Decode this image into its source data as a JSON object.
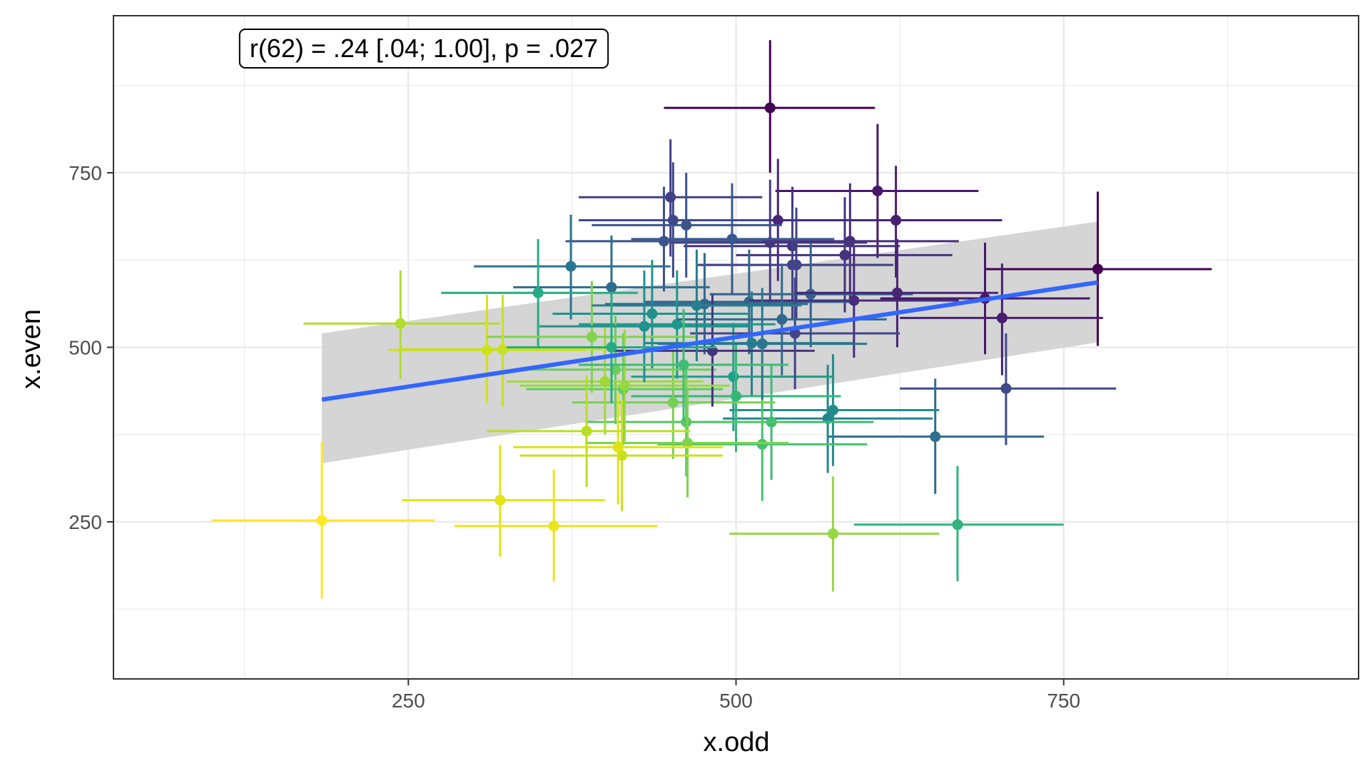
{
  "chart_data": {
    "type": "scatter",
    "xlabel": "x.odd",
    "ylabel": "x.even",
    "xlim": [
      25,
      975
    ],
    "ylim": [
      25,
      975
    ],
    "x_ticks": [
      250,
      500,
      750
    ],
    "y_ticks": [
      250,
      500,
      750
    ],
    "x_minor": [
      125,
      375,
      625,
      875
    ],
    "y_minor": [
      125,
      375,
      625,
      875
    ],
    "annotation": "r(62) = .24 [.04; 1.00], p = .027",
    "colors": {
      "trend_line": "#3366FF",
      "ribbon": "#D3D3D3",
      "grid": "#EBEBEB",
      "panel_border": "#333333"
    },
    "trend": {
      "x": [
        184,
        776
      ],
      "y": [
        425,
        593
      ],
      "ribbon_upper": [
        520,
        680
      ],
      "ribbon_lower": [
        334,
        507
      ]
    },
    "points": [
      {
        "x": 526,
        "y": 843,
        "x_lo": 445,
        "x_hi": 606,
        "y_lo": 750,
        "y_hi": 940,
        "color": "#440154"
      },
      {
        "x": 776,
        "y": 612,
        "x_lo": 690,
        "x_hi": 863,
        "y_lo": 502,
        "y_hi": 723,
        "color": "#440154"
      },
      {
        "x": 608,
        "y": 724,
        "x_lo": 530,
        "x_hi": 685,
        "y_lo": 628,
        "y_hi": 820,
        "color": "#48186a"
      },
      {
        "x": 622,
        "y": 682,
        "x_lo": 540,
        "x_hi": 703,
        "y_lo": 600,
        "y_hi": 760,
        "color": "#481f70"
      },
      {
        "x": 532,
        "y": 682,
        "x_lo": 450,
        "x_hi": 612,
        "y_lo": 595,
        "y_hi": 770,
        "color": "#482576"
      },
      {
        "x": 583,
        "y": 632,
        "x_lo": 500,
        "x_hi": 665,
        "y_lo": 550,
        "y_hi": 715,
        "color": "#46337e"
      },
      {
        "x": 587,
        "y": 652,
        "x_lo": 500,
        "x_hi": 670,
        "y_lo": 570,
        "y_hi": 735,
        "color": "#472d7b"
      },
      {
        "x": 543,
        "y": 645,
        "x_lo": 460,
        "x_hi": 625,
        "y_lo": 560,
        "y_hi": 730,
        "color": "#46337e"
      },
      {
        "x": 526,
        "y": 650,
        "x_lo": 450,
        "x_hi": 600,
        "y_lo": 560,
        "y_hi": 740,
        "color": "#453882"
      },
      {
        "x": 450,
        "y": 715,
        "x_lo": 380,
        "x_hi": 520,
        "y_lo": 630,
        "y_hi": 798,
        "color": "#433e85"
      },
      {
        "x": 546,
        "y": 618,
        "x_lo": 470,
        "x_hi": 620,
        "y_lo": 540,
        "y_hi": 700,
        "color": "#424086"
      },
      {
        "x": 543,
        "y": 618,
        "x_lo": 470,
        "x_hi": 615,
        "y_lo": 540,
        "y_hi": 700,
        "color": "#414487"
      },
      {
        "x": 452,
        "y": 682,
        "x_lo": 380,
        "x_hi": 525,
        "y_lo": 600,
        "y_hi": 765,
        "color": "#3f4788"
      },
      {
        "x": 706,
        "y": 441,
        "x_lo": 625,
        "x_hi": 790,
        "y_lo": 360,
        "y_hi": 520,
        "color": "#3e4a89"
      },
      {
        "x": 445,
        "y": 652,
        "x_lo": 370,
        "x_hi": 520,
        "y_lo": 580,
        "y_hi": 730,
        "color": "#3b528b"
      },
      {
        "x": 462,
        "y": 675,
        "x_lo": 390,
        "x_hi": 535,
        "y_lo": 600,
        "y_hi": 750,
        "color": "#3a548c"
      },
      {
        "x": 497,
        "y": 655,
        "x_lo": 420,
        "x_hi": 575,
        "y_lo": 575,
        "y_hi": 735,
        "color": "#38598c"
      },
      {
        "x": 557,
        "y": 576,
        "x_lo": 480,
        "x_hi": 635,
        "y_lo": 500,
        "y_hi": 650,
        "color": "#355f8d"
      },
      {
        "x": 510,
        "y": 565,
        "x_lo": 430,
        "x_hi": 590,
        "y_lo": 490,
        "y_hi": 640,
        "color": "#33638d"
      },
      {
        "x": 476,
        "y": 562,
        "x_lo": 400,
        "x_hi": 555,
        "y_lo": 490,
        "y_hi": 635,
        "color": "#31688e"
      },
      {
        "x": 405,
        "y": 586,
        "x_lo": 330,
        "x_hi": 480,
        "y_lo": 510,
        "y_hi": 660,
        "color": "#2f6b8e"
      },
      {
        "x": 652,
        "y": 372,
        "x_lo": 570,
        "x_hi": 735,
        "y_lo": 290,
        "y_hi": 455,
        "color": "#2e6e8e"
      },
      {
        "x": 374,
        "y": 616,
        "x_lo": 300,
        "x_hi": 450,
        "y_lo": 540,
        "y_hi": 690,
        "color": "#2a768e"
      },
      {
        "x": 512,
        "y": 506,
        "x_lo": 430,
        "x_hi": 590,
        "y_lo": 430,
        "y_hi": 580,
        "color": "#277e8e"
      },
      {
        "x": 570,
        "y": 398,
        "x_lo": 490,
        "x_hi": 650,
        "y_lo": 320,
        "y_hi": 475,
        "color": "#25858e"
      },
      {
        "x": 574,
        "y": 410,
        "x_lo": 495,
        "x_hi": 655,
        "y_lo": 330,
        "y_hi": 490,
        "color": "#228c8d"
      },
      {
        "x": 436,
        "y": 548,
        "x_lo": 360,
        "x_hi": 510,
        "y_lo": 470,
        "y_hi": 625,
        "color": "#20928c"
      },
      {
        "x": 455,
        "y": 533,
        "x_lo": 380,
        "x_hi": 530,
        "y_lo": 455,
        "y_hi": 610,
        "color": "#1f988b"
      },
      {
        "x": 498,
        "y": 458,
        "x_lo": 420,
        "x_hi": 575,
        "y_lo": 380,
        "y_hi": 535,
        "color": "#1fa088"
      },
      {
        "x": 349,
        "y": 578,
        "x_lo": 275,
        "x_hi": 425,
        "y_lo": 500,
        "y_hi": 655,
        "color": "#25ac82"
      },
      {
        "x": 669,
        "y": 246,
        "x_lo": 590,
        "x_hi": 750,
        "y_lo": 165,
        "y_hi": 330,
        "color": "#2fb47c"
      },
      {
        "x": 500,
        "y": 430,
        "x_lo": 420,
        "x_hi": 580,
        "y_lo": 350,
        "y_hi": 505,
        "color": "#35b779"
      },
      {
        "x": 527,
        "y": 393,
        "x_lo": 450,
        "x_hi": 605,
        "y_lo": 310,
        "y_hi": 475,
        "color": "#3dbc74"
      },
      {
        "x": 520,
        "y": 361,
        "x_lo": 440,
        "x_hi": 600,
        "y_lo": 280,
        "y_hi": 445,
        "color": "#46c06f"
      },
      {
        "x": 462,
        "y": 393,
        "x_lo": 385,
        "x_hi": 540,
        "y_lo": 315,
        "y_hi": 470,
        "color": "#56c667"
      },
      {
        "x": 414,
        "y": 440,
        "x_lo": 340,
        "x_hi": 490,
        "y_lo": 360,
        "y_hi": 520,
        "color": "#60ca60"
      },
      {
        "x": 408,
        "y": 468,
        "x_lo": 330,
        "x_hi": 485,
        "y_lo": 390,
        "y_hi": 545,
        "color": "#6ccd5a"
      },
      {
        "x": 452,
        "y": 421,
        "x_lo": 375,
        "x_hi": 530,
        "y_lo": 340,
        "y_hi": 500,
        "color": "#75d054"
      },
      {
        "x": 463,
        "y": 363,
        "x_lo": 385,
        "x_hi": 540,
        "y_lo": 285,
        "y_hi": 440,
        "color": "#7fd34e"
      },
      {
        "x": 574,
        "y": 233,
        "x_lo": 495,
        "x_hi": 655,
        "y_lo": 150,
        "y_hi": 315,
        "color": "#95d840"
      },
      {
        "x": 400,
        "y": 451,
        "x_lo": 325,
        "x_hi": 475,
        "y_lo": 375,
        "y_hi": 530,
        "color": "#a0da39"
      },
      {
        "x": 244,
        "y": 534,
        "x_lo": 170,
        "x_hi": 320,
        "y_lo": 455,
        "y_hi": 610,
        "color": "#b0dd2f"
      },
      {
        "x": 386,
        "y": 380,
        "x_lo": 310,
        "x_hi": 465,
        "y_lo": 300,
        "y_hi": 460,
        "color": "#bade28"
      },
      {
        "x": 413,
        "y": 345,
        "x_lo": 335,
        "x_hi": 490,
        "y_lo": 265,
        "y_hi": 425,
        "color": "#c8e020"
      },
      {
        "x": 310,
        "y": 496,
        "x_lo": 235,
        "x_hi": 385,
        "y_lo": 420,
        "y_hi": 575,
        "color": "#d2e21b"
      },
      {
        "x": 410,
        "y": 357,
        "x_lo": 330,
        "x_hi": 490,
        "y_lo": 275,
        "y_hi": 435,
        "color": "#dde318"
      },
      {
        "x": 320,
        "y": 281,
        "x_lo": 245,
        "x_hi": 400,
        "y_lo": 200,
        "y_hi": 360,
        "color": "#e2e418"
      },
      {
        "x": 361,
        "y": 244,
        "x_lo": 285,
        "x_hi": 440,
        "y_lo": 165,
        "y_hi": 325,
        "color": "#ece51b"
      },
      {
        "x": 184,
        "y": 252,
        "x_lo": 100,
        "x_hi": 270,
        "y_lo": 140,
        "y_hi": 365,
        "color": "#fde725"
      },
      {
        "x": 390,
        "y": 515,
        "x_lo": 310,
        "x_hi": 470,
        "y_lo": 435,
        "y_hi": 595,
        "color": "#7fd34e"
      },
      {
        "x": 482,
        "y": 495,
        "x_lo": 405,
        "x_hi": 560,
        "y_lo": 415,
        "y_hi": 575,
        "color": "#46337e"
      },
      {
        "x": 590,
        "y": 567,
        "x_lo": 510,
        "x_hi": 670,
        "y_lo": 485,
        "y_hi": 645,
        "color": "#472d7b"
      },
      {
        "x": 623,
        "y": 578,
        "x_lo": 545,
        "x_hi": 700,
        "y_lo": 500,
        "y_hi": 655,
        "color": "#482576"
      },
      {
        "x": 690,
        "y": 570,
        "x_lo": 610,
        "x_hi": 770,
        "y_lo": 490,
        "y_hi": 650,
        "color": "#48186a"
      },
      {
        "x": 703,
        "y": 542,
        "x_lo": 625,
        "x_hi": 780,
        "y_lo": 460,
        "y_hi": 620,
        "color": "#481f70"
      },
      {
        "x": 545,
        "y": 520,
        "x_lo": 465,
        "x_hi": 625,
        "y_lo": 440,
        "y_hi": 600,
        "color": "#414487"
      },
      {
        "x": 520,
        "y": 505,
        "x_lo": 440,
        "x_hi": 600,
        "y_lo": 425,
        "y_hi": 585,
        "color": "#2a768e"
      },
      {
        "x": 322,
        "y": 497,
        "x_lo": 245,
        "x_hi": 400,
        "y_lo": 415,
        "y_hi": 575,
        "color": "#c8e020"
      },
      {
        "x": 430,
        "y": 530,
        "x_lo": 350,
        "x_hi": 510,
        "y_lo": 450,
        "y_hi": 610,
        "color": "#20928c"
      },
      {
        "x": 470,
        "y": 560,
        "x_lo": 390,
        "x_hi": 550,
        "y_lo": 480,
        "y_hi": 640,
        "color": "#277e8e"
      },
      {
        "x": 535,
        "y": 540,
        "x_lo": 455,
        "x_hi": 615,
        "y_lo": 460,
        "y_hi": 620,
        "color": "#31688e"
      },
      {
        "x": 415,
        "y": 445,
        "x_lo": 335,
        "x_hi": 495,
        "y_lo": 365,
        "y_hi": 525,
        "color": "#95d840"
      },
      {
        "x": 460,
        "y": 475,
        "x_lo": 380,
        "x_hi": 540,
        "y_lo": 395,
        "y_hi": 555,
        "color": "#3dbc74"
      },
      {
        "x": 405,
        "y": 500,
        "x_lo": 325,
        "x_hi": 485,
        "y_lo": 420,
        "y_hi": 580,
        "color": "#25ac82"
      }
    ]
  }
}
